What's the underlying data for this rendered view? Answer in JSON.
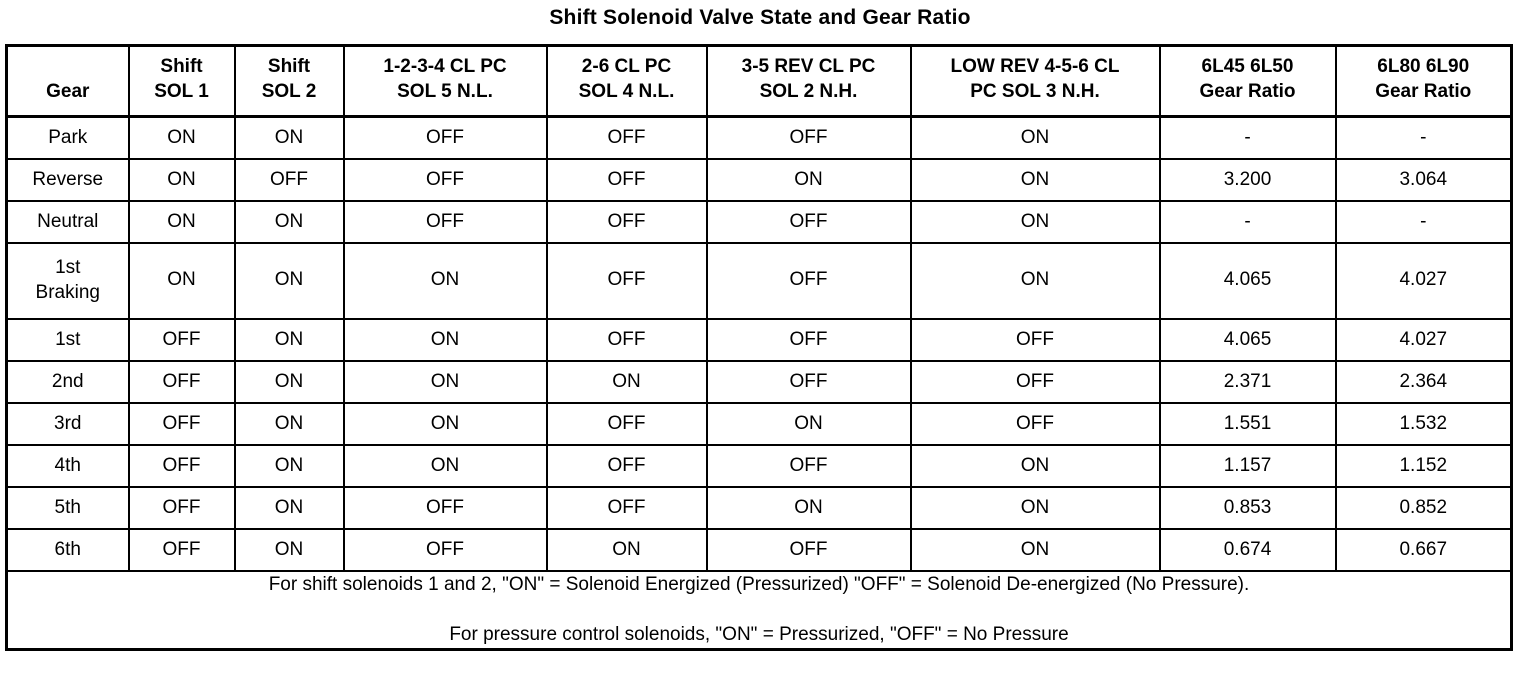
{
  "title": "Shift Solenoid Valve State and Gear Ratio",
  "table": {
    "headers": [
      [
        "Gear"
      ],
      [
        "Shift",
        "SOL 1"
      ],
      [
        "Shift",
        "SOL 2"
      ],
      [
        "1-2-3-4 CL PC",
        "SOL 5 N.L."
      ],
      [
        "2-6 CL PC",
        "SOL 4 N.L."
      ],
      [
        "3-5 REV CL PC",
        "SOL 2 N.H."
      ],
      [
        "LOW REV 4-5-6 CL",
        "PC SOL 3 N.H."
      ],
      [
        "6L45 6L50",
        "Gear Ratio"
      ],
      [
        "6L80 6L90",
        "Gear Ratio"
      ]
    ],
    "rows": [
      {
        "gear": [
          "Park"
        ],
        "cells": [
          "ON",
          "ON",
          "OFF",
          "OFF",
          "OFF",
          "ON",
          "-",
          "-"
        ]
      },
      {
        "gear": [
          "Reverse"
        ],
        "cells": [
          "ON",
          "OFF",
          "OFF",
          "OFF",
          "ON",
          "ON",
          "3.200",
          "3.064"
        ]
      },
      {
        "gear": [
          "Neutral"
        ],
        "cells": [
          "ON",
          "ON",
          "OFF",
          "OFF",
          "OFF",
          "ON",
          "-",
          "-"
        ]
      },
      {
        "gear": [
          "1st",
          "Braking"
        ],
        "cells": [
          "ON",
          "ON",
          "ON",
          "OFF",
          "OFF",
          "ON",
          "4.065",
          "4.027"
        ]
      },
      {
        "gear": [
          "1st"
        ],
        "cells": [
          "OFF",
          "ON",
          "ON",
          "OFF",
          "OFF",
          "OFF",
          "4.065",
          "4.027"
        ]
      },
      {
        "gear": [
          "2nd"
        ],
        "cells": [
          "OFF",
          "ON",
          "ON",
          "ON",
          "OFF",
          "OFF",
          "2.371",
          "2.364"
        ]
      },
      {
        "gear": [
          "3rd"
        ],
        "cells": [
          "OFF",
          "ON",
          "ON",
          "OFF",
          "ON",
          "OFF",
          "1.551",
          "1.532"
        ]
      },
      {
        "gear": [
          "4th"
        ],
        "cells": [
          "OFF",
          "ON",
          "ON",
          "OFF",
          "OFF",
          "ON",
          "1.157",
          "1.152"
        ]
      },
      {
        "gear": [
          "5th"
        ],
        "cells": [
          "OFF",
          "ON",
          "OFF",
          "OFF",
          "ON",
          "ON",
          "0.853",
          "0.852"
        ]
      },
      {
        "gear": [
          "6th"
        ],
        "cells": [
          "OFF",
          "ON",
          "OFF",
          "ON",
          "OFF",
          "ON",
          "0.674",
          "0.667"
        ]
      }
    ],
    "notes": [
      "For shift solenoids 1 and 2, \"ON\" = Solenoid Energized (Pressurized) \"OFF\" = Solenoid De-energized (No Pressure).",
      "For pressure control solenoids, \"ON\" = Pressurized, \"OFF\" = No Pressure"
    ]
  }
}
